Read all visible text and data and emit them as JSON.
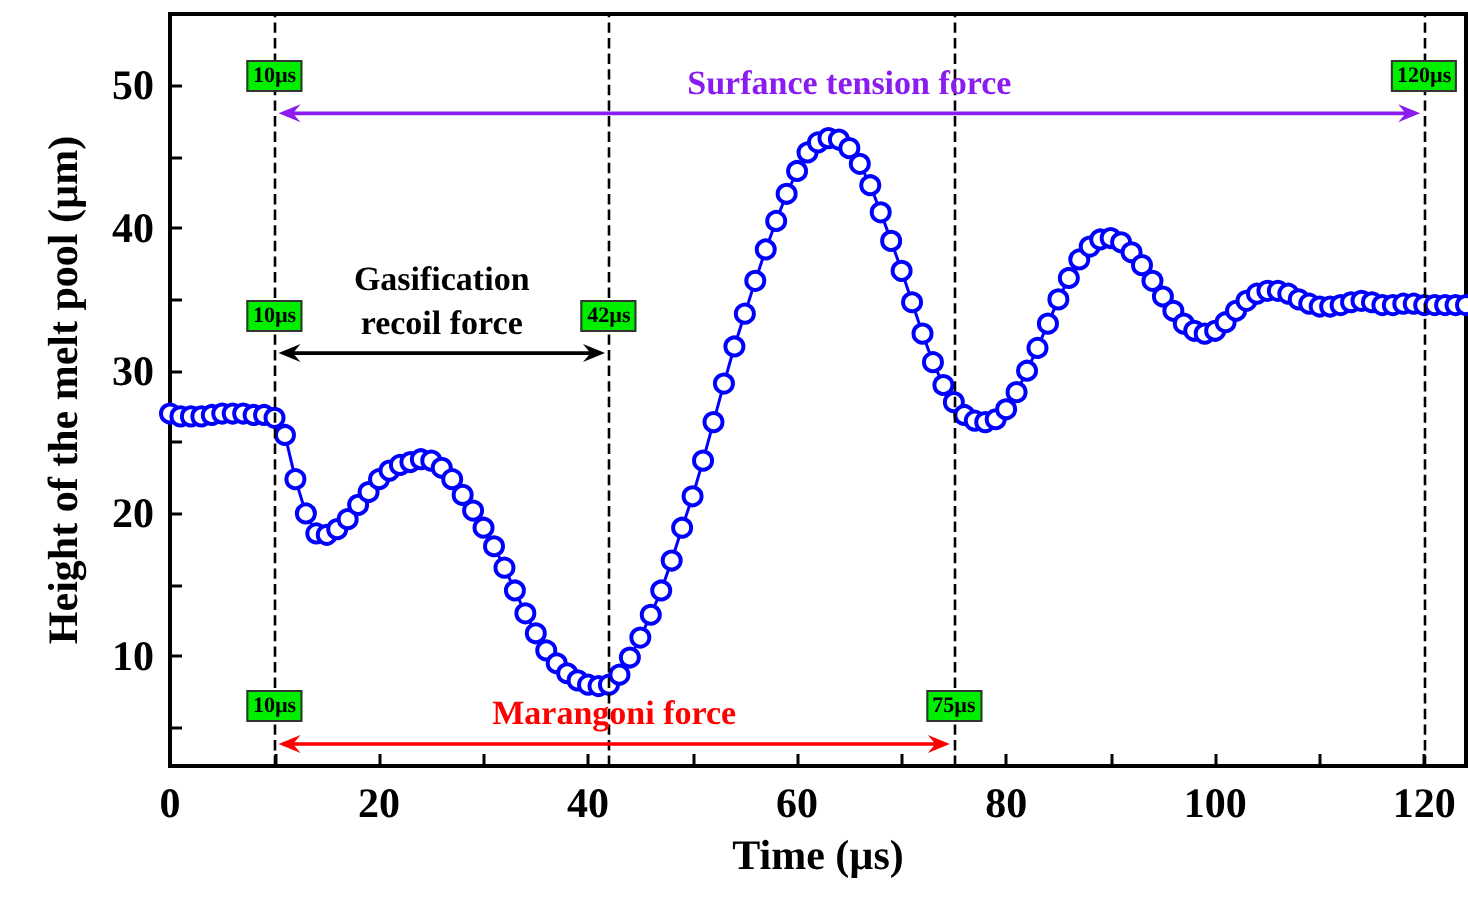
{
  "chart_data": {
    "type": "line",
    "xlabel": "Time (µs)",
    "ylabel": "Height of the melt pool (µm)",
    "x": [
      0,
      1,
      2,
      3,
      4,
      5,
      6,
      7,
      8,
      9,
      10,
      11,
      12,
      13,
      14,
      15,
      16,
      17,
      18,
      19,
      20,
      21,
      22,
      23,
      24,
      25,
      26,
      27,
      28,
      29,
      30,
      31,
      32,
      33,
      34,
      35,
      36,
      37,
      38,
      39,
      40,
      41,
      42,
      43,
      44,
      45,
      46,
      47,
      48,
      49,
      50,
      51,
      52,
      53,
      54,
      55,
      56,
      57,
      58,
      59,
      60,
      61,
      62,
      63,
      64,
      65,
      66,
      67,
      68,
      69,
      70,
      71,
      72,
      73,
      74,
      75,
      76,
      77,
      78,
      79,
      80,
      81,
      82,
      83,
      84,
      85,
      86,
      87,
      88,
      89,
      90,
      91,
      92,
      93,
      94,
      95,
      96,
      97,
      98,
      99,
      100,
      101,
      102,
      103,
      104,
      105,
      106,
      107,
      108,
      109,
      110,
      111,
      112,
      113,
      114,
      115,
      116,
      117,
      118,
      119,
      120,
      121,
      122,
      123,
      124
    ],
    "series": [
      {
        "color": "#0000ff",
        "values": [
          27.0,
          26.8,
          26.8,
          26.8,
          26.9,
          27.0,
          27.0,
          27.0,
          26.9,
          26.9,
          26.7,
          25.5,
          22.4,
          20.0,
          18.6,
          18.5,
          18.9,
          19.6,
          20.6,
          21.5,
          22.4,
          23.0,
          23.4,
          23.6,
          23.8,
          23.7,
          23.2,
          22.4,
          21.3,
          20.2,
          19.0,
          17.7,
          16.2,
          14.6,
          13.0,
          11.6,
          10.4,
          9.5,
          8.8,
          8.3,
          8.0,
          7.9,
          8.0,
          8.7,
          9.9,
          11.3,
          12.9,
          14.6,
          16.7,
          19.0,
          21.2,
          23.7,
          26.4,
          29.1,
          31.7,
          34.0,
          36.3,
          38.5,
          40.5,
          42.4,
          44.0,
          45.3,
          46.0,
          46.3,
          46.2,
          45.6,
          44.5,
          43.0,
          41.1,
          39.1,
          37.0,
          34.8,
          32.6,
          30.6,
          29.0,
          27.8,
          26.9,
          26.5,
          26.4,
          26.6,
          27.3,
          28.5,
          30.0,
          31.6,
          33.3,
          35.0,
          36.5,
          37.8,
          38.7,
          39.2,
          39.3,
          39.0,
          38.3,
          37.4,
          36.3,
          35.2,
          34.2,
          33.3,
          32.8,
          32.6,
          32.8,
          33.4,
          34.2,
          34.9,
          35.4,
          35.6,
          35.6,
          35.4,
          35.0,
          34.7,
          34.5,
          34.5,
          34.6,
          34.8,
          34.9,
          34.8,
          34.6,
          34.6,
          34.7,
          34.7,
          34.6,
          34.6,
          34.6,
          34.6,
          34.6
        ]
      }
    ],
    "xlim": [
      0,
      124
    ],
    "xticks": [
      0,
      {
        "value": 10,
        "label": null
      },
      20,
      {
        "value": 30,
        "label": null
      },
      40,
      {
        "value": 50,
        "label": null
      },
      60,
      {
        "value": 70,
        "label": null
      },
      80,
      {
        "value": 90,
        "label": null
      },
      100,
      {
        "value": 110,
        "label": null
      },
      120
    ],
    "ylim": [
      2.3,
      55
    ],
    "yticks": [
      {
        "value": 5,
        "label": null
      },
      10,
      {
        "value": 15,
        "label": null
      },
      20,
      {
        "value": 25,
        "label": null
      },
      30,
      {
        "value": 35,
        "label": null
      },
      40,
      {
        "value": 45,
        "label": null
      },
      50
    ],
    "grid": false,
    "marker": "circle",
    "line_style": "solid",
    "ref_lines": [
      {
        "axis": "x",
        "value": 10,
        "color": "#000000",
        "line_style": "dashed"
      },
      {
        "axis": "x",
        "value": 42,
        "color": "#000000",
        "line_style": "dashed"
      },
      {
        "axis": "x",
        "value": 75,
        "color": "#000000",
        "line_style": "dashed"
      },
      {
        "axis": "x",
        "value": 120,
        "color": "#000000",
        "line_style": "dashed"
      }
    ],
    "annotations": [
      {
        "text": "10µs",
        "x": 10,
        "y": 50.7
      },
      {
        "text": "120µs",
        "x": 120,
        "y": 50.7
      },
      "Surfance tension force",
      {
        "text": "10µs",
        "x": 10,
        "y": 33.9
      },
      {
        "text": "42µs",
        "x": 42,
        "y": 33.9
      },
      "Gasification recoil force",
      {
        "text": "10µs",
        "x": 10,
        "y": 6.5
      },
      {
        "text": "75µs",
        "x": 75,
        "y": 6.5
      },
      "Marangoni force"
    ]
  }
}
